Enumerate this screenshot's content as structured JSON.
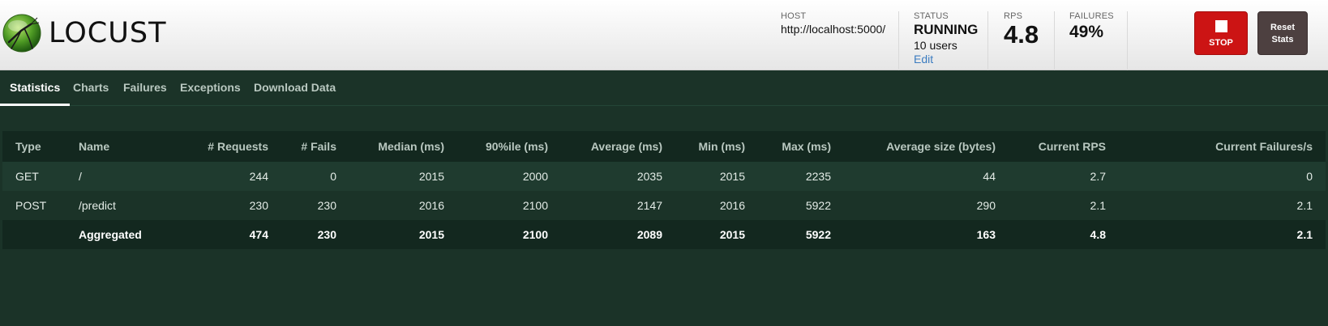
{
  "header": {
    "logo_text": "LOCUST",
    "host": {
      "label": "HOST",
      "value": "http://localhost:5000/"
    },
    "status": {
      "label": "STATUS",
      "value": "RUNNING",
      "users": "10 users",
      "edit": "Edit"
    },
    "rps": {
      "label": "RPS",
      "value": "4.8"
    },
    "failures": {
      "label": "FAILURES",
      "value": "49%"
    },
    "stop_label": "STOP",
    "reset_label_line1": "Reset",
    "reset_label_line2": "Stats"
  },
  "tabs": [
    "Statistics",
    "Charts",
    "Failures",
    "Exceptions",
    "Download Data"
  ],
  "table": {
    "columns": [
      "Type",
      "Name",
      "# Requests",
      "# Fails",
      "Median (ms)",
      "90%ile (ms)",
      "Average (ms)",
      "Min (ms)",
      "Max (ms)",
      "Average size (bytes)",
      "Current RPS",
      "Current Failures/s"
    ],
    "rows": [
      [
        "GET",
        "/",
        "244",
        "0",
        "2015",
        "2000",
        "2035",
        "2015",
        "2235",
        "44",
        "2.7",
        "0"
      ],
      [
        "POST",
        "/predict",
        "230",
        "230",
        "2016",
        "2100",
        "2147",
        "2016",
        "5922",
        "290",
        "2.1",
        "2.1"
      ]
    ],
    "aggregated": [
      "",
      "Aggregated",
      "474",
      "230",
      "2015",
      "2100",
      "2089",
      "2015",
      "5922",
      "163",
      "4.8",
      "2.1"
    ]
  },
  "colors": {
    "background": "#1b3328",
    "stop_button": "#cc1414",
    "reset_button": "#4d4040",
    "edit_link": "#3c7cc0"
  },
  "icons": {
    "logo": "locust-grasshopper-logo-icon",
    "stop": "stop-square-icon"
  }
}
